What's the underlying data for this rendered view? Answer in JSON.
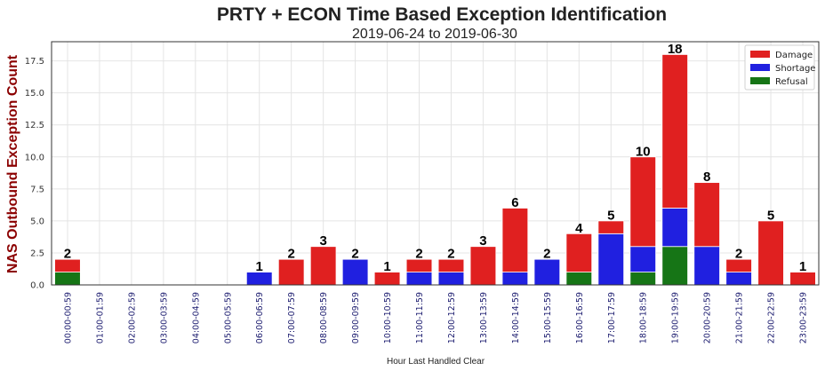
{
  "chart_data": {
    "type": "bar",
    "stacked": true,
    "title": "PRTY + ECON Time Based Exception Identification",
    "subtitle": "2019-06-24  to  2019-06-30",
    "xlabel": "Hour Last Handled Clear",
    "ylabel": "NAS Outbound Exception Count",
    "ylim": [
      0,
      19
    ],
    "yticks": [
      "0.0",
      "2.5",
      "5.0",
      "7.5",
      "10.0",
      "12.5",
      "15.0",
      "17.5"
    ],
    "grid": true,
    "legend_position": "top-right",
    "categories": [
      "00:00-00:59",
      "01:00-01:59",
      "02:00-02:59",
      "03:00-03:59",
      "04:00-04:59",
      "05:00-05:59",
      "06:00-06:59",
      "07:00-07:59",
      "08:00-08:59",
      "09:00-09:59",
      "10:00-10:59",
      "11:00-11:59",
      "12:00-12:59",
      "13:00-13:59",
      "14:00-14:59",
      "15:00-15:59",
      "16:00-16:59",
      "17:00-17:59",
      "18:00-18:59",
      "19:00-19:59",
      "20:00-20:59",
      "21:00-21:59",
      "22:00-22:59",
      "23:00-23:59"
    ],
    "series": [
      {
        "name": "Refusal",
        "color": "#167516",
        "values": [
          1,
          0,
          0,
          0,
          0,
          0,
          0,
          0,
          0,
          0,
          0,
          0,
          0,
          0,
          0,
          0,
          1,
          0,
          1,
          3,
          0,
          0,
          0,
          0
        ]
      },
      {
        "name": "Shortage",
        "color": "#2020e0",
        "values": [
          0,
          0,
          0,
          0,
          0,
          0,
          1,
          0,
          0,
          2,
          0,
          1,
          1,
          0,
          1,
          2,
          0,
          4,
          2,
          3,
          3,
          1,
          0,
          0
        ]
      },
      {
        "name": "Damage",
        "color": "#e02020",
        "values": [
          1,
          0,
          0,
          0,
          0,
          0,
          0,
          2,
          3,
          0,
          1,
          1,
          1,
          3,
          5,
          0,
          3,
          1,
          7,
          12,
          5,
          1,
          5,
          1
        ]
      }
    ],
    "legend_order": [
      "Damage",
      "Shortage",
      "Refusal"
    ],
    "totals": [
      2,
      null,
      null,
      null,
      null,
      null,
      1,
      2,
      3,
      2,
      1,
      2,
      2,
      3,
      6,
      2,
      4,
      5,
      10,
      18,
      8,
      2,
      5,
      1
    ]
  }
}
